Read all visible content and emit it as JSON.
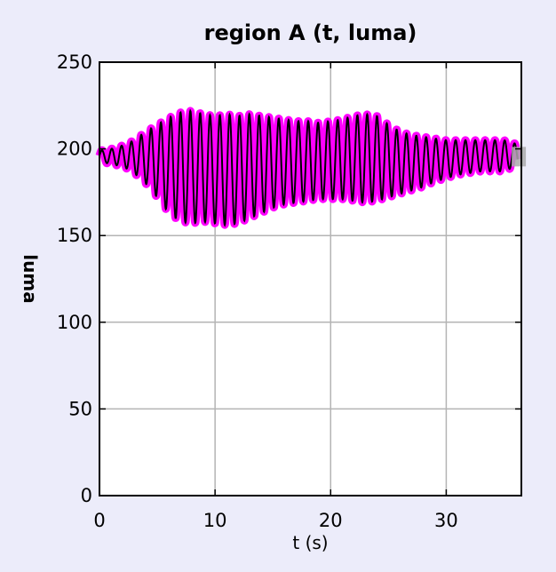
{
  "chart_data": {
    "type": "line",
    "title": "region A (t, luma)",
    "xlabel": "t (s)",
    "ylabel": "luma",
    "xlim": [
      0,
      36.5
    ],
    "ylim": [
      0,
      250
    ],
    "xticks": [
      0,
      10,
      20,
      30
    ],
    "yticks": [
      0,
      50,
      100,
      150,
      200,
      250
    ],
    "grid": true,
    "legend": "none",
    "signal": {
      "baseline": 195,
      "oscillation_period_s": 0.85,
      "envelope_t": [
        0,
        1,
        2,
        3,
        4,
        5,
        6,
        7,
        8,
        9,
        10,
        11,
        12,
        13,
        14,
        15,
        16,
        17,
        18,
        19,
        20,
        21,
        22,
        23,
        24,
        25,
        26,
        27,
        28,
        29,
        30,
        31,
        32,
        33,
        34,
        35,
        36
      ],
      "envelope_max": [
        199,
        200,
        202,
        205,
        210,
        214,
        218,
        221,
        222,
        220,
        219,
        220,
        219,
        220,
        219,
        218,
        217,
        216,
        216,
        215,
        216,
        217,
        219,
        220,
        219,
        214,
        210,
        208,
        207,
        206,
        205,
        205,
        205,
        205,
        205,
        205,
        203
      ],
      "envelope_min": [
        193,
        191,
        190,
        186,
        180,
        172,
        163,
        158,
        157,
        158,
        157,
        156,
        157,
        160,
        163,
        166,
        168,
        169,
        170,
        171,
        171,
        171,
        170,
        169,
        170,
        172,
        174,
        176,
        178,
        181,
        183,
        185,
        186,
        187,
        187,
        187,
        190
      ]
    },
    "colors": {
      "line": "#000000",
      "highlight": "#ff00ff",
      "end_marker": "#aaaaaa",
      "grid": "#b4b4b4",
      "axes_bg": "#ffffff",
      "figure_bg": "#ececfa"
    }
  }
}
